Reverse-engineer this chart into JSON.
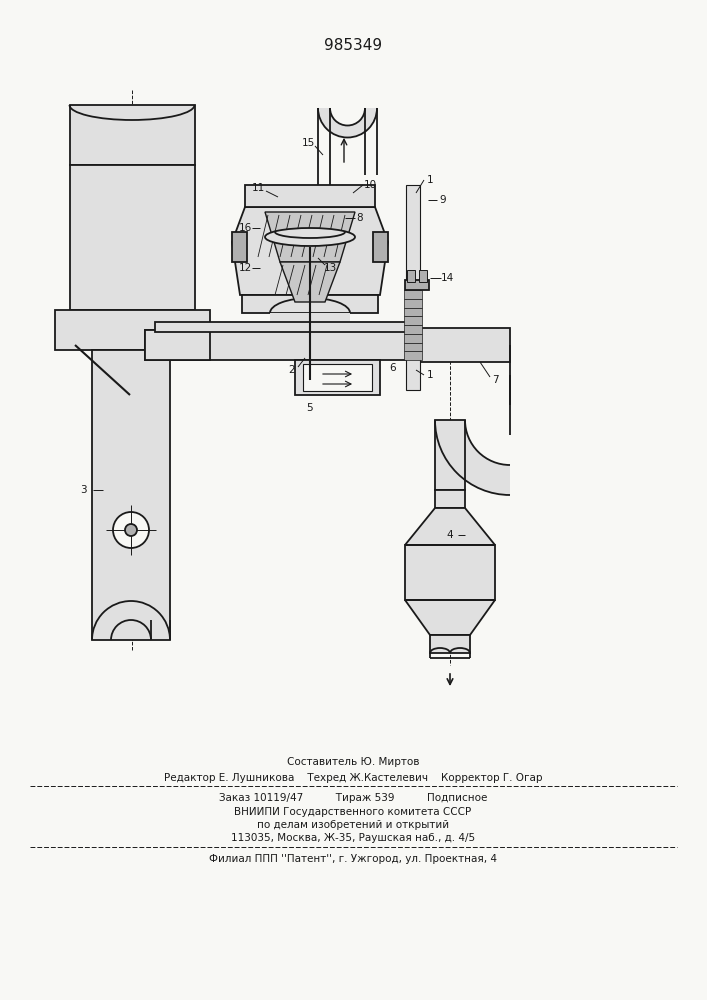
{
  "patent_number": "985349",
  "background_color": "#f8f8f5",
  "line_color": "#1a1a1a",
  "footer_lines": [
    "Составитель Ю. Миртов",
    "Редактор Е. Лушникова    Техред Ж.Кастелевич    Корректор Г. Огар",
    "Заказ 10119/47          Тираж 539          Подписное",
    "ВНИИПИ Государственного комитета СССР",
    "по делам изобретений и открытий",
    "113035, Москва, Ж-35, Раушская наб., д. 4/5",
    "Филиал ППП ''Патент'', г. Ужгород, ул. Проектная, 4"
  ]
}
